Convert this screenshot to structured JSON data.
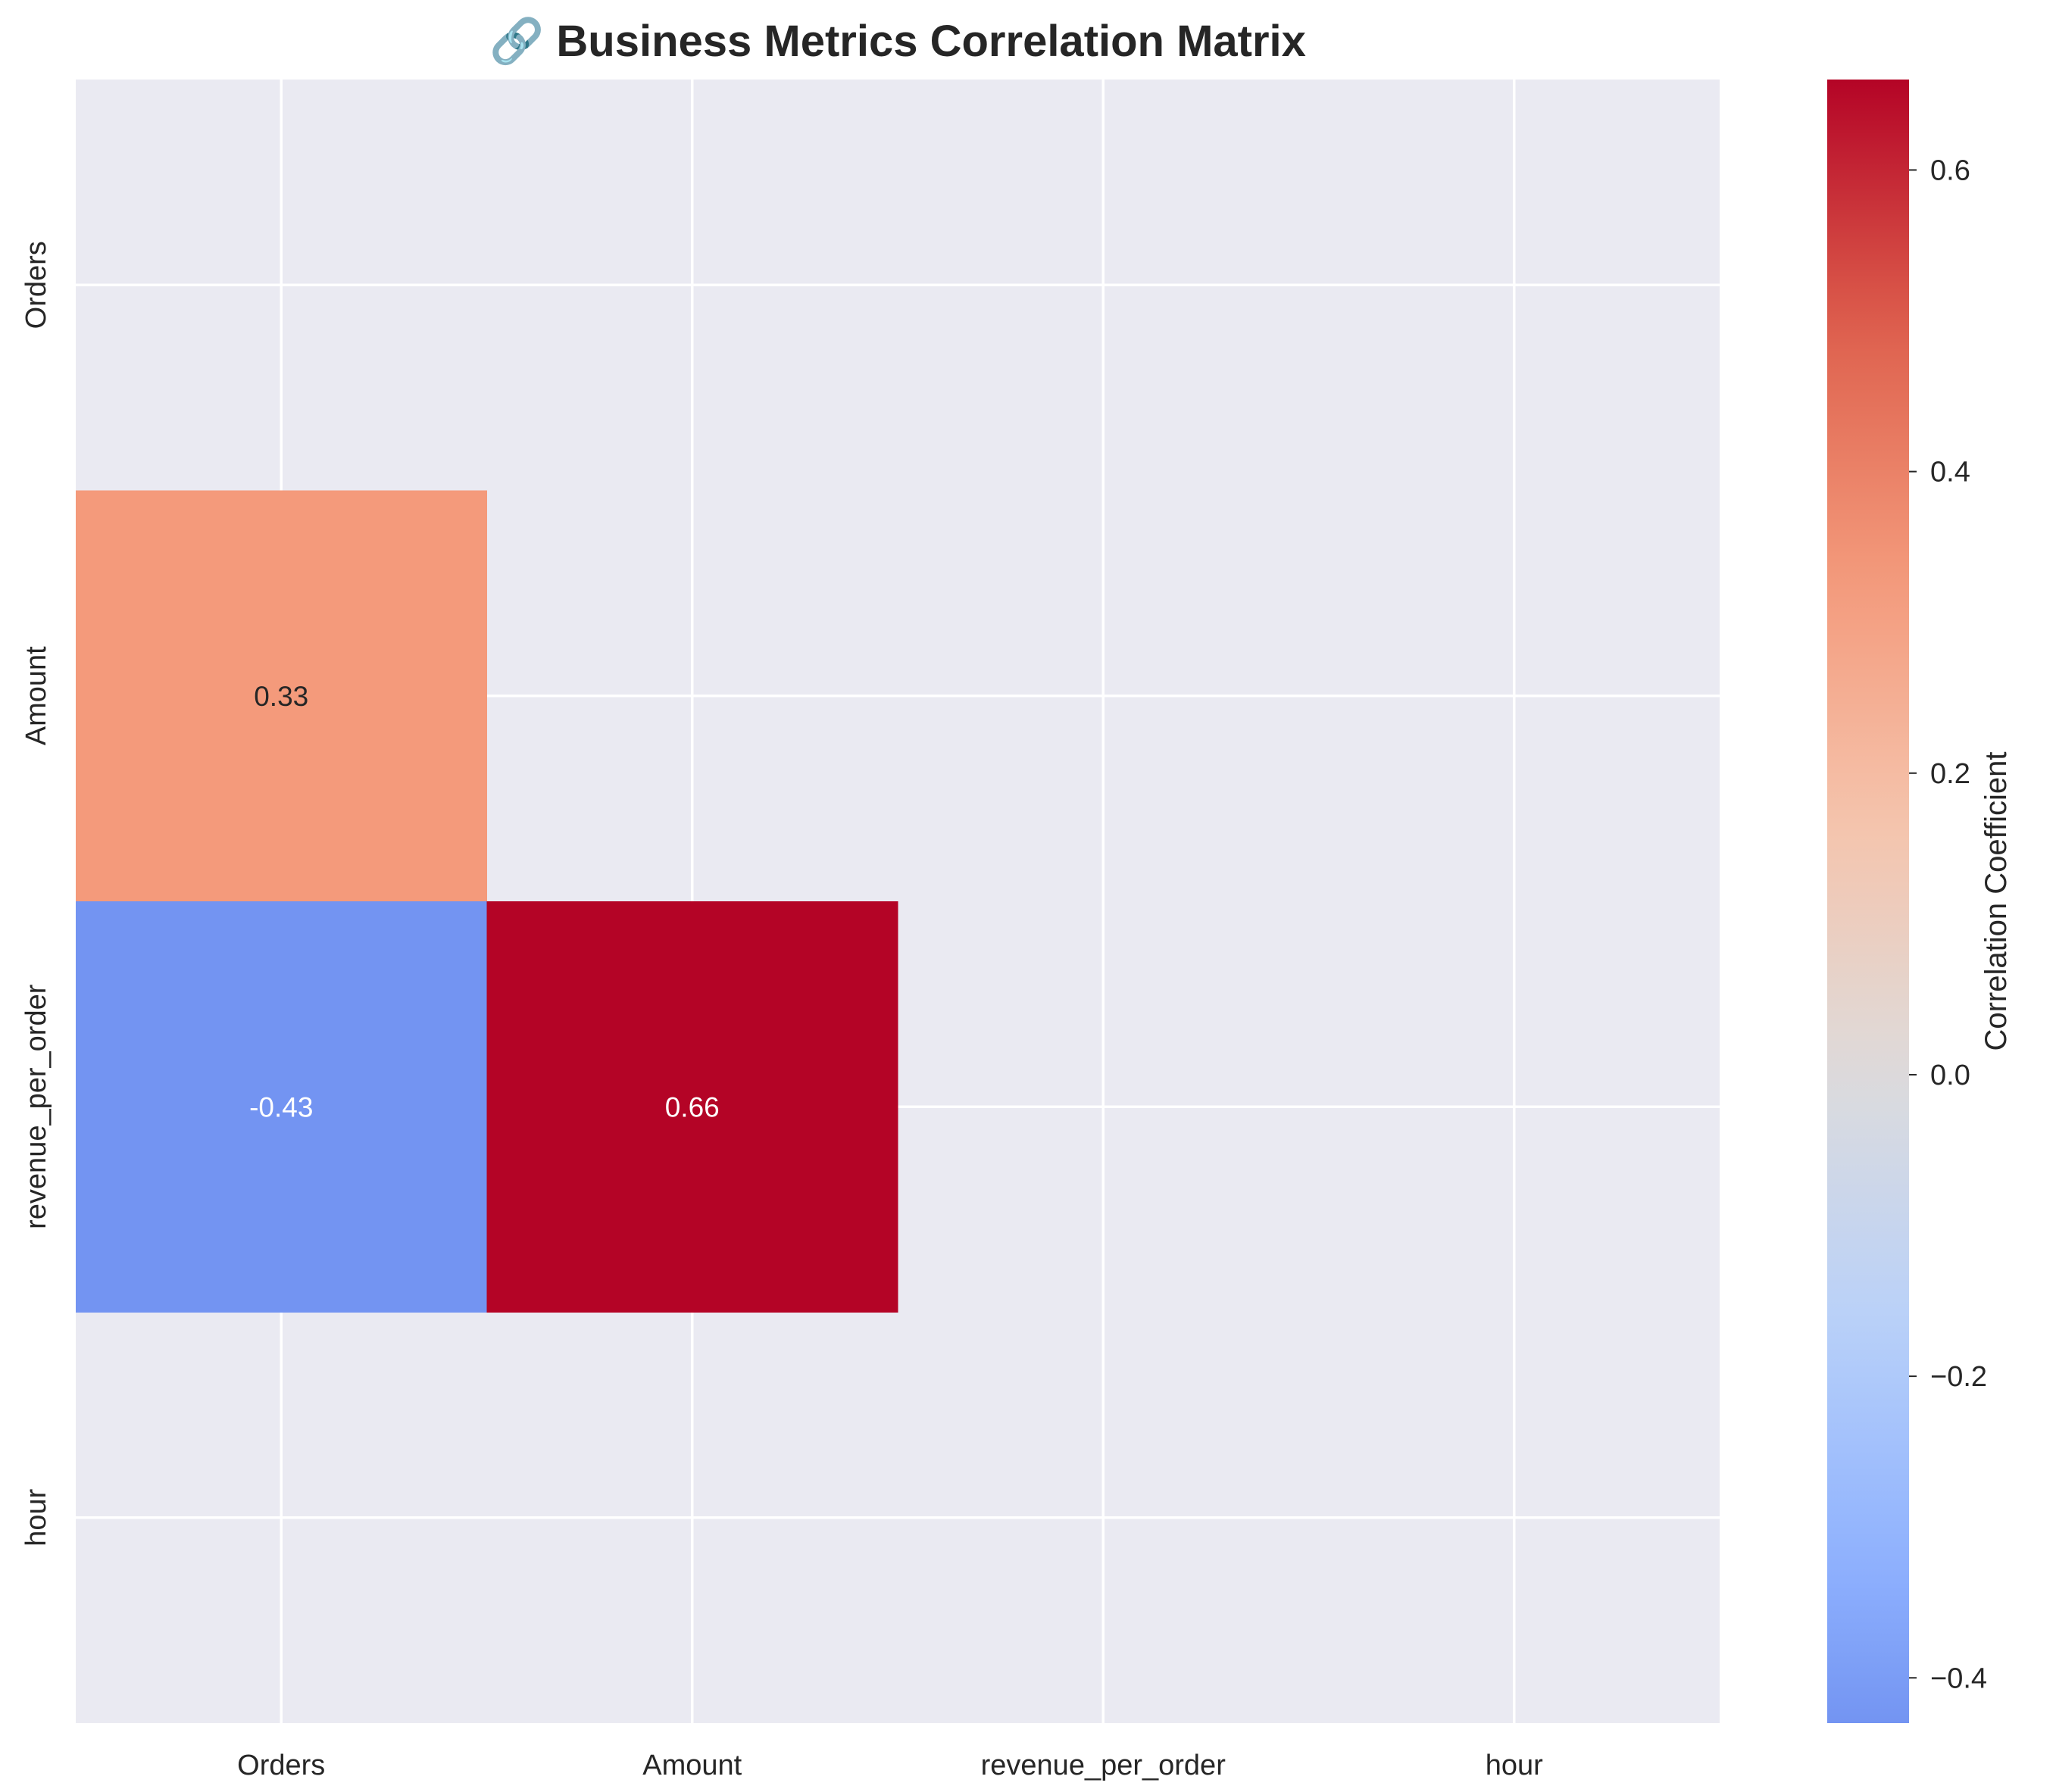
{
  "chart_data": {
    "type": "heatmap",
    "title": "🔗 Business Metrics Correlation Matrix",
    "row_labels": [
      "Orders",
      "Amount",
      "revenue_per_order",
      "hour"
    ],
    "col_labels": [
      "Orders",
      "Amount",
      "revenue_per_order",
      "hour"
    ],
    "cells": [
      {
        "row": "Amount",
        "col": "Orders",
        "value": 0.33,
        "label": "0.33"
      },
      {
        "row": "revenue_per_order",
        "col": "Orders",
        "value": -0.43,
        "label": "-0.43"
      },
      {
        "row": "revenue_per_order",
        "col": "Amount",
        "value": 0.66,
        "label": "0.66"
      }
    ],
    "masked": "upper triangle including diagonal; hour row empty",
    "colormap": "coolwarm",
    "vmin": -0.43,
    "vmax": 0.66,
    "grid": true,
    "colorbar": {
      "label": "Correlation Coefficient",
      "ticks": [
        -0.4,
        -0.2,
        0.0,
        0.2,
        0.4,
        0.6
      ],
      "tick_labels": [
        "−0.4",
        "−0.2",
        "0.0",
        "0.2",
        "0.4",
        "0.6"
      ]
    },
    "colors": {
      "background": "#EAEAF2",
      "gridline": "#FFFFFF",
      "text_dark": "#262626",
      "text_light": "#FFFFFF"
    }
  }
}
